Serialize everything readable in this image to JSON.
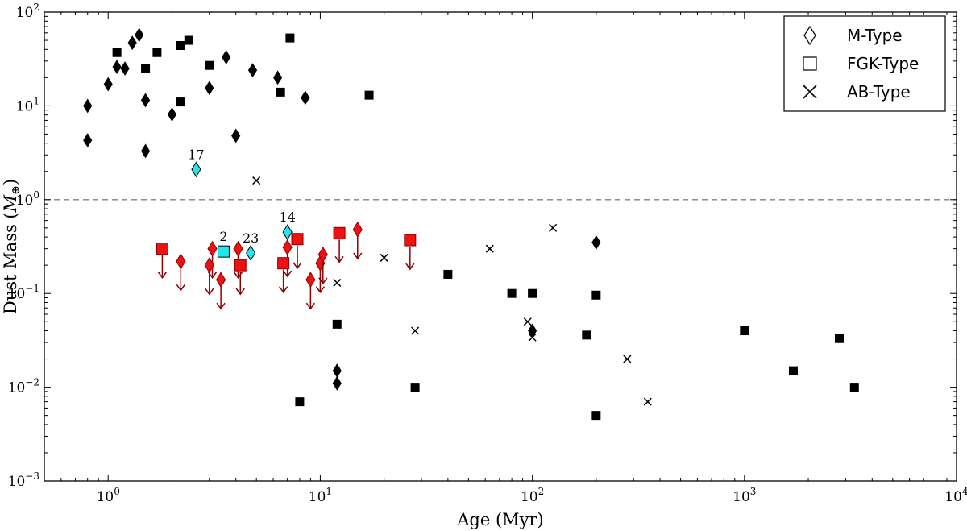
{
  "chart_data": {
    "type": "scatter",
    "xlabel": "Age (Myr)",
    "ylabel": "Dust Mass (M⊕)",
    "xscale": "log",
    "yscale": "log",
    "xlim": [
      0.5,
      10000
    ],
    "ylim": [
      0.001,
      100
    ],
    "x_ticks": [
      {
        "value": 1,
        "label": "10",
        "exp": "0"
      },
      {
        "value": 10,
        "label": "10",
        "exp": "1"
      },
      {
        "value": 100,
        "label": "10",
        "exp": "2"
      },
      {
        "value": 1000,
        "label": "10",
        "exp": "3"
      },
      {
        "value": 10000,
        "label": "10",
        "exp": "4"
      }
    ],
    "y_ticks": [
      {
        "value": 0.001,
        "label": "10",
        "exp": "−3"
      },
      {
        "value": 0.01,
        "label": "10",
        "exp": "−2"
      },
      {
        "value": 0.1,
        "label": "10",
        "exp": "−1"
      },
      {
        "value": 1,
        "label": "10",
        "exp": "0"
      },
      {
        "value": 10,
        "label": "10",
        "exp": "1"
      },
      {
        "value": 100,
        "label": "10",
        "exp": "2"
      }
    ],
    "reference_line": {
      "y": 1,
      "style": "dashed",
      "color": "#808080"
    },
    "legend": {
      "placement": "top-right",
      "entries": [
        {
          "label": "M-Type",
          "marker": "diamond"
        },
        {
          "label": "FGK-Type",
          "marker": "square"
        },
        {
          "label": "AB-Type",
          "marker": "x"
        }
      ]
    },
    "colors": {
      "detection": "#000000",
      "upper_limit": "#ee1111",
      "highlight": "#22e5ee",
      "arrow": "#8b0000"
    },
    "series": [
      {
        "marker": "diamond",
        "style": "detection",
        "points": [
          [
            0.8,
            10
          ],
          [
            0.8,
            4.3
          ],
          [
            1.0,
            17
          ],
          [
            1.1,
            26
          ],
          [
            1.2,
            25
          ],
          [
            1.3,
            47
          ],
          [
            1.4,
            57
          ],
          [
            1.5,
            11.5
          ],
          [
            1.5,
            3.3
          ],
          [
            2.0,
            8.1
          ],
          [
            3.0,
            15.5
          ],
          [
            3.6,
            33
          ],
          [
            4.0,
            4.8
          ],
          [
            4.8,
            24
          ],
          [
            6.3,
            20
          ],
          [
            8.5,
            12.2
          ],
          [
            12,
            0.015
          ],
          [
            12,
            0.011
          ],
          [
            100,
            0.04
          ],
          [
            200,
            0.35
          ]
        ]
      },
      {
        "marker": "square",
        "style": "detection",
        "points": [
          [
            1.1,
            37
          ],
          [
            1.5,
            25
          ],
          [
            1.7,
            37
          ],
          [
            2.2,
            44
          ],
          [
            2.4,
            50
          ],
          [
            2.2,
            11
          ],
          [
            3.0,
            27
          ],
          [
            6.5,
            14
          ],
          [
            7.2,
            53
          ],
          [
            17,
            13
          ],
          [
            12,
            0.047
          ],
          [
            8,
            0.007
          ],
          [
            28,
            0.01
          ],
          [
            40,
            0.16
          ],
          [
            80,
            0.1
          ],
          [
            100,
            0.1
          ],
          [
            180,
            0.036
          ],
          [
            200,
            0.096
          ],
          [
            200,
            0.005
          ],
          [
            1000,
            0.04
          ],
          [
            1700,
            0.015
          ],
          [
            2800,
            0.033
          ],
          [
            3300,
            0.01
          ]
        ]
      },
      {
        "marker": "x",
        "style": "detection",
        "points": [
          [
            5,
            1.6
          ],
          [
            12,
            0.13
          ],
          [
            20,
            0.24
          ],
          [
            28,
            0.04
          ],
          [
            63,
            0.3
          ],
          [
            95,
            0.05
          ],
          [
            100,
            0.034
          ],
          [
            125,
            0.5
          ],
          [
            280,
            0.02
          ],
          [
            350,
            0.007
          ]
        ]
      },
      {
        "marker": "diamond",
        "style": "upper_limit",
        "points": [
          [
            2.2,
            0.22
          ],
          [
            3.1,
            0.3
          ],
          [
            3.0,
            0.2
          ],
          [
            3.4,
            0.14
          ],
          [
            4.1,
            0.3
          ],
          [
            7.0,
            0.31
          ],
          [
            9.0,
            0.14
          ],
          [
            10,
            0.21
          ],
          [
            10.3,
            0.26
          ],
          [
            15,
            0.48
          ]
        ]
      },
      {
        "marker": "square",
        "style": "upper_limit",
        "points": [
          [
            1.8,
            0.3
          ],
          [
            4.2,
            0.2
          ],
          [
            6.7,
            0.21
          ],
          [
            7.8,
            0.38
          ],
          [
            12.3,
            0.44
          ],
          [
            26.5,
            0.37
          ]
        ]
      },
      {
        "marker": "diamond",
        "style": "highlight",
        "points": [
          [
            2.6,
            2.1
          ],
          [
            4.7,
            0.27
          ],
          [
            7.0,
            0.45
          ]
        ]
      },
      {
        "marker": "square",
        "style": "highlight",
        "points": [
          [
            3.5,
            0.28
          ]
        ]
      }
    ],
    "annotations": [
      {
        "text": "17",
        "x": 2.6,
        "y": 2.1
      },
      {
        "text": "2",
        "x": 3.5,
        "y": 0.28
      },
      {
        "text": "23",
        "x": 4.7,
        "y": 0.27
      },
      {
        "text": "14",
        "x": 7.0,
        "y": 0.45
      }
    ]
  }
}
